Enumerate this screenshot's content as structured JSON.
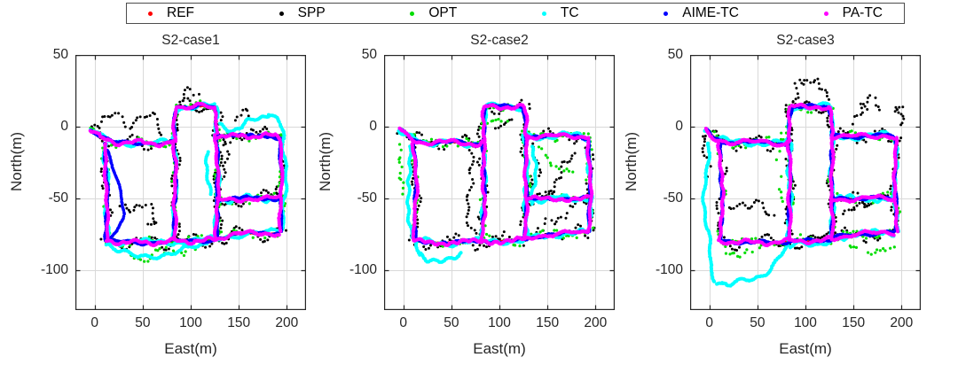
{
  "legend": {
    "entries": [
      "REF",
      "SPP",
      "OPT",
      "TC",
      "AIME-TC",
      "PA-TC"
    ]
  },
  "chart_data": {
    "type": "scatter",
    "layout": "1x3-trajectory-comparison",
    "xlabel": "East(m)",
    "ylabel": "North(m)",
    "xlim": [
      -20,
      220
    ],
    "ylim": [
      -128,
      50
    ],
    "xticks": [
      0,
      50,
      100,
      150,
      200
    ],
    "yticks": [
      50,
      0,
      -50,
      -100
    ],
    "grid": true,
    "grid_color": "#d9d9d9",
    "axes_color": "#262626",
    "legend_position": "top-horizontal",
    "series_styles": [
      {
        "name": "REF",
        "color": "#ff0000",
        "marker_px": 1.2,
        "spacing_m": 1.6,
        "wander_m": 0.35,
        "jitter_m": 0.2,
        "dropout": 0.0
      },
      {
        "name": "SPP",
        "color": "#000000",
        "marker_px": 1.5,
        "spacing_m": 2.4,
        "wander_m": 6.0,
        "jitter_m": 0.55,
        "dropout": 0.1
      },
      {
        "name": "OPT",
        "color": "#00dd00",
        "marker_px": 1.6,
        "spacing_m": 3.0,
        "wander_m": 3.4,
        "jitter_m": 1.3,
        "dropout": 0.3
      },
      {
        "name": "TC",
        "color": "#00ffff",
        "marker_px": 2.0,
        "spacing_m": 1.3,
        "wander_m": 2.8,
        "jitter_m": 0.3,
        "dropout": 0.0
      },
      {
        "name": "AIME-TC",
        "color": "#0000ff",
        "marker_px": 1.8,
        "spacing_m": 1.3,
        "wander_m": 1.6,
        "jitter_m": 0.25,
        "dropout": 0.0
      },
      {
        "name": "PA-TC",
        "color": "#ff00ff",
        "marker_px": 2.1,
        "spacing_m": 1.3,
        "wander_m": 2.1,
        "jitter_m": 0.3,
        "dropout": 0.0
      }
    ],
    "route_segments_EN_m": [
      [
        [
          -4,
          -2
        ],
        [
          6,
          -8
        ],
        [
          20,
          -11
        ],
        [
          50,
          -11
        ],
        [
          78,
          -12
        ],
        [
          83,
          -10
        ]
      ],
      [
        [
          11,
          -12
        ],
        [
          13,
          -45
        ],
        [
          12,
          -80
        ]
      ],
      [
        [
          12,
          -80
        ],
        [
          50,
          -81
        ],
        [
          90,
          -80
        ],
        [
          127,
          -79
        ]
      ],
      [
        [
          83,
          -10
        ],
        [
          84,
          -45
        ],
        [
          83,
          -79
        ]
      ],
      [
        [
          83,
          -10
        ],
        [
          84,
          8
        ],
        [
          85,
          14
        ],
        [
          105,
          14
        ],
        [
          125,
          14
        ],
        [
          127,
          8
        ],
        [
          127,
          -6
        ]
      ],
      [
        [
          127,
          -6
        ],
        [
          128,
          -40
        ],
        [
          127,
          -78
        ]
      ],
      [
        [
          127,
          -6
        ],
        [
          150,
          -7
        ],
        [
          180,
          -6
        ],
        [
          193,
          -8
        ]
      ],
      [
        [
          193,
          -8
        ],
        [
          194,
          -40
        ],
        [
          194,
          -73
        ]
      ],
      [
        [
          128,
          -51
        ],
        [
          160,
          -50
        ],
        [
          193,
          -50
        ]
      ],
      [
        [
          127,
          -78
        ],
        [
          150,
          -75
        ],
        [
          193,
          -74
        ]
      ]
    ],
    "subplots": [
      {
        "title": "S2-case1",
        "skip_segments": {
          "TC": [
            6,
            7
          ]
        },
        "extra_segments": {
          "SPP": [
            [
              [
                8,
                2
              ],
              [
                20,
                7
              ],
              [
                35,
                4
              ],
              [
                50,
                7
              ],
              [
                62,
                3
              ],
              [
                72,
                -3
              ]
            ],
            [
              [
                86,
                16
              ],
              [
                92,
                25
              ],
              [
                100,
                22
              ],
              [
                108,
                17
              ]
            ],
            [
              [
                146,
                5
              ],
              [
                153,
                11
              ],
              [
                160,
                6
              ]
            ],
            [
              [
                28,
                -52
              ],
              [
                42,
                -60
              ],
              [
                55,
                -57
              ],
              [
                66,
                -66
              ],
              [
                58,
                -74
              ]
            ],
            [
              [
                133,
                -8
              ],
              [
                134,
                -25
              ],
              [
                133,
                -45
              ]
            ]
          ],
          "OPT": [
            [
              [
                25,
                -86
              ],
              [
                45,
                -92
              ],
              [
                65,
                -89
              ],
              [
                85,
                -86
              ],
              [
                105,
                -88
              ]
            ]
          ],
          "TC": [
            [
              [
                130,
                0
              ],
              [
                145,
                -2
              ],
              [
                165,
                4
              ],
              [
                182,
                10
              ],
              [
                192,
                2
              ],
              [
                197,
                -8
              ]
            ],
            [
              [
                197,
                -8
              ],
              [
                198,
                -40
              ],
              [
                197,
                -72
              ]
            ],
            [
              [
                14,
                -82
              ],
              [
                25,
                -88
              ],
              [
                45,
                -91
              ],
              [
                70,
                -89
              ],
              [
                95,
                -86
              ],
              [
                118,
                -83
              ]
            ],
            [
              [
                119,
                -18
              ],
              [
                116,
                -32
              ],
              [
                119,
                -48
              ]
            ]
          ],
          "AIME-TC": [
            [
              [
                14,
                -16
              ],
              [
                20,
                -30
              ],
              [
                27,
                -48
              ],
              [
                30,
                -62
              ],
              [
                24,
                -74
              ],
              [
                15,
                -79
              ]
            ]
          ]
        }
      },
      {
        "title": "S2-case2",
        "skip_segments": {
          "TC": [
            1
          ]
        },
        "extra_segments": {
          "SPP": [
            [
              [
                148,
                -46
              ],
              [
                160,
                -36
              ],
              [
                172,
                -27
              ],
              [
                183,
                -17
              ]
            ],
            [
              [
                146,
                -71
              ],
              [
                158,
                -64
              ],
              [
                170,
                -58
              ]
            ],
            [
              [
                70,
                -14
              ],
              [
                67,
                -30
              ],
              [
                71,
                -48
              ],
              [
                69,
                -65
              ],
              [
                72,
                -76
              ]
            ],
            [
              [
                98,
                4
              ],
              [
                106,
                1
              ],
              [
                113,
                6
              ]
            ],
            [
              [
                135,
                -12
              ],
              [
                137,
                -28
              ],
              [
                134,
                -45
              ]
            ]
          ],
          "OPT": [
            [
              [
                -3,
                -12
              ],
              [
                -6,
                -26
              ],
              [
                -2,
                -40
              ],
              [
                2,
                -50
              ]
            ],
            [
              [
                140,
                -16
              ],
              [
                152,
                -22
              ],
              [
                165,
                -28
              ],
              [
                178,
                -33
              ]
            ],
            [
              [
                88,
                3
              ],
              [
                98,
                7
              ],
              [
                110,
                4
              ]
            ]
          ],
          "TC": [
            [
              [
                8,
                -14
              ],
              [
                4,
                -38
              ],
              [
                7,
                -62
              ],
              [
                10,
                -78
              ]
            ],
            [
              [
                12,
                -80
              ],
              [
                15,
                -90
              ],
              [
                26,
                -95
              ],
              [
                42,
                -92
              ],
              [
                60,
                -88
              ]
            ],
            [
              [
                134,
                -14
              ],
              [
                137,
                -34
              ],
              [
                135,
                -54
              ]
            ]
          ]
        }
      },
      {
        "title": "S2-case3",
        "skip_segments": {
          "TC": [
            1,
            2
          ]
        },
        "extra_segments": {
          "SPP": [
            [
              [
                86,
                18
              ],
              [
                92,
                30
              ],
              [
                101,
                27
              ],
              [
                110,
                33
              ],
              [
                120,
                29
              ],
              [
                127,
                19
              ]
            ],
            [
              [
                148,
                3
              ],
              [
                156,
                16
              ],
              [
                165,
                12
              ],
              [
                172,
                20
              ],
              [
                177,
                11
              ]
            ],
            [
              [
                194,
                10
              ],
              [
                199,
                17
              ],
              [
                203,
                8
              ],
              [
                200,
                -3
              ]
            ],
            [
              [
                138,
                -58
              ],
              [
                150,
                -53
              ],
              [
                162,
                -57
              ],
              [
                170,
                -51
              ]
            ],
            [
              [
                22,
                -53
              ],
              [
                38,
                -59
              ],
              [
                54,
                -56
              ],
              [
                68,
                -62
              ]
            ],
            [
              [
                -4,
                -8
              ],
              [
                -2,
                -22
              ],
              [
                -5,
                -36
              ]
            ]
          ],
          "OPT": [
            [
              [
                142,
                -84
              ],
              [
                160,
                -88
              ],
              [
                180,
                -84
              ],
              [
                193,
                -82
              ]
            ],
            [
              [
                18,
                -86
              ],
              [
                38,
                -89
              ],
              [
                55,
                -87
              ]
            ],
            [
              [
                85,
                6
              ],
              [
                92,
                14
              ],
              [
                100,
                10
              ]
            ],
            [
              [
                75,
                -5
              ],
              [
                72,
                -20
              ],
              [
                76,
                -38
              ],
              [
                73,
                -55
              ]
            ]
          ],
          "TC": [
            [
              [
                0,
                -12
              ],
              [
                -5,
                -35
              ],
              [
                -4,
                -60
              ],
              [
                -1,
                -82
              ],
              [
                2,
                -98
              ],
              [
                8,
                -108
              ],
              [
                20,
                -111
              ],
              [
                38,
                -108
              ],
              [
                55,
                -103
              ],
              [
                68,
                -96
              ],
              [
                78,
                -88
              ],
              [
                84,
                -84
              ]
            ],
            [
              [
                84,
                -84
              ],
              [
                100,
                -82
              ],
              [
                115,
                -81
              ],
              [
                127,
                -80
              ]
            ]
          ]
        }
      }
    ]
  }
}
